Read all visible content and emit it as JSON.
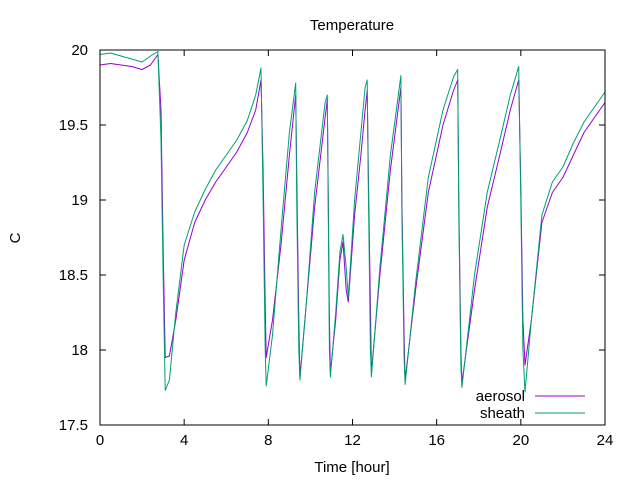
{
  "chart_data": {
    "type": "line",
    "title": "Temperature",
    "xlabel": "Time [hour]",
    "ylabel": "C",
    "xlim": [
      0,
      24
    ],
    "ylim": [
      17.5,
      20
    ],
    "xticks": [
      0,
      4,
      8,
      12,
      16,
      20,
      24
    ],
    "yticks": [
      17.5,
      18,
      18.5,
      19,
      19.5,
      20
    ],
    "grid": false,
    "legend_position": "bottom-right",
    "series": [
      {
        "name": "aerosol",
        "color": "#9400d3",
        "points": [
          [
            0,
            19.9
          ],
          [
            0.5,
            19.91
          ],
          [
            1,
            19.9
          ],
          [
            1.5,
            19.89
          ],
          [
            2,
            19.87
          ],
          [
            2.4,
            19.9
          ],
          [
            2.75,
            19.97
          ],
          [
            2.9,
            19.6
          ],
          [
            3.0,
            18.7
          ],
          [
            3.1,
            17.95
          ],
          [
            3.3,
            17.96
          ],
          [
            3.6,
            18.2
          ],
          [
            4,
            18.6
          ],
          [
            4.5,
            18.85
          ],
          [
            5,
            19.0
          ],
          [
            5.5,
            19.12
          ],
          [
            6,
            19.22
          ],
          [
            6.5,
            19.32
          ],
          [
            7,
            19.45
          ],
          [
            7.4,
            19.6
          ],
          [
            7.65,
            19.8
          ],
          [
            7.75,
            19.2
          ],
          [
            7.85,
            18.3
          ],
          [
            7.9,
            17.95
          ],
          [
            8.2,
            18.2
          ],
          [
            8.6,
            18.7
          ],
          [
            9.0,
            19.3
          ],
          [
            9.3,
            19.7
          ],
          [
            9.35,
            19.2
          ],
          [
            9.45,
            18.2
          ],
          [
            9.5,
            17.82
          ],
          [
            9.8,
            18.3
          ],
          [
            10.2,
            18.95
          ],
          [
            10.7,
            19.55
          ],
          [
            10.8,
            19.67
          ],
          [
            10.85,
            19.0
          ],
          [
            10.9,
            18.2
          ],
          [
            10.95,
            17.85
          ],
          [
            11.2,
            18.2
          ],
          [
            11.4,
            18.6
          ],
          [
            11.55,
            18.72
          ],
          [
            11.7,
            18.4
          ],
          [
            11.8,
            18.32
          ],
          [
            12.1,
            18.9
          ],
          [
            12.4,
            19.3
          ],
          [
            12.6,
            19.6
          ],
          [
            12.7,
            19.73
          ],
          [
            12.75,
            19.2
          ],
          [
            12.85,
            18.3
          ],
          [
            12.9,
            17.85
          ],
          [
            13.3,
            18.5
          ],
          [
            13.8,
            19.2
          ],
          [
            14.3,
            19.75
          ],
          [
            14.35,
            19.0
          ],
          [
            14.45,
            18.1
          ],
          [
            14.5,
            17.8
          ],
          [
            15.0,
            18.4
          ],
          [
            15.6,
            19.05
          ],
          [
            16.3,
            19.5
          ],
          [
            16.8,
            19.73
          ],
          [
            17.0,
            19.8
          ],
          [
            17.05,
            19.0
          ],
          [
            17.15,
            18.0
          ],
          [
            17.2,
            17.78
          ],
          [
            17.8,
            18.4
          ],
          [
            18.4,
            18.95
          ],
          [
            19.0,
            19.3
          ],
          [
            19.5,
            19.6
          ],
          [
            19.9,
            19.8
          ],
          [
            20.0,
            19.1
          ],
          [
            20.1,
            18.2
          ],
          [
            20.2,
            17.9
          ],
          [
            20.5,
            18.2
          ],
          [
            21,
            18.85
          ],
          [
            21.5,
            19.05
          ],
          [
            22,
            19.15
          ],
          [
            22.5,
            19.3
          ],
          [
            23,
            19.45
          ],
          [
            23.5,
            19.55
          ],
          [
            24,
            19.65
          ]
        ]
      },
      {
        "name": "sheath",
        "color": "#009e73",
        "points": [
          [
            0,
            19.97
          ],
          [
            0.5,
            19.98
          ],
          [
            1,
            19.96
          ],
          [
            1.5,
            19.94
          ],
          [
            2,
            19.92
          ],
          [
            2.4,
            19.96
          ],
          [
            2.75,
            19.99
          ],
          [
            2.9,
            19.4
          ],
          [
            3.0,
            18.5
          ],
          [
            3.1,
            17.73
          ],
          [
            3.3,
            17.8
          ],
          [
            3.6,
            18.25
          ],
          [
            4,
            18.7
          ],
          [
            4.5,
            18.92
          ],
          [
            5,
            19.07
          ],
          [
            5.5,
            19.2
          ],
          [
            6,
            19.3
          ],
          [
            6.5,
            19.4
          ],
          [
            7,
            19.53
          ],
          [
            7.4,
            19.7
          ],
          [
            7.65,
            19.88
          ],
          [
            7.75,
            19.0
          ],
          [
            7.85,
            18.0
          ],
          [
            7.9,
            17.76
          ],
          [
            8.2,
            18.1
          ],
          [
            8.6,
            18.8
          ],
          [
            9.0,
            19.45
          ],
          [
            9.3,
            19.78
          ],
          [
            9.35,
            19.0
          ],
          [
            9.45,
            18.0
          ],
          [
            9.5,
            17.8
          ],
          [
            9.8,
            18.3
          ],
          [
            10.2,
            19.05
          ],
          [
            10.7,
            19.65
          ],
          [
            10.8,
            19.7
          ],
          [
            10.85,
            18.9
          ],
          [
            10.9,
            18.0
          ],
          [
            10.95,
            17.82
          ],
          [
            11.2,
            18.25
          ],
          [
            11.4,
            18.65
          ],
          [
            11.55,
            18.77
          ],
          [
            11.7,
            18.55
          ],
          [
            11.8,
            18.35
          ],
          [
            12.1,
            19.0
          ],
          [
            12.4,
            19.45
          ],
          [
            12.6,
            19.75
          ],
          [
            12.7,
            19.8
          ],
          [
            12.75,
            19.1
          ],
          [
            12.85,
            18.0
          ],
          [
            12.9,
            17.82
          ],
          [
            13.3,
            18.55
          ],
          [
            13.8,
            19.3
          ],
          [
            14.3,
            19.83
          ],
          [
            14.35,
            18.9
          ],
          [
            14.45,
            17.95
          ],
          [
            14.5,
            17.77
          ],
          [
            15.0,
            18.45
          ],
          [
            15.6,
            19.15
          ],
          [
            16.3,
            19.6
          ],
          [
            16.8,
            19.82
          ],
          [
            17.0,
            19.87
          ],
          [
            17.05,
            18.9
          ],
          [
            17.15,
            17.9
          ],
          [
            17.2,
            17.75
          ],
          [
            17.8,
            18.5
          ],
          [
            18.4,
            19.05
          ],
          [
            19.0,
            19.4
          ],
          [
            19.5,
            19.7
          ],
          [
            19.9,
            19.89
          ],
          [
            20.0,
            19.0
          ],
          [
            20.1,
            18.0
          ],
          [
            20.2,
            17.72
          ],
          [
            20.5,
            18.2
          ],
          [
            21,
            18.9
          ],
          [
            21.5,
            19.12
          ],
          [
            22,
            19.22
          ],
          [
            22.5,
            19.38
          ],
          [
            23,
            19.52
          ],
          [
            23.5,
            19.62
          ],
          [
            24,
            19.72
          ]
        ]
      }
    ]
  }
}
